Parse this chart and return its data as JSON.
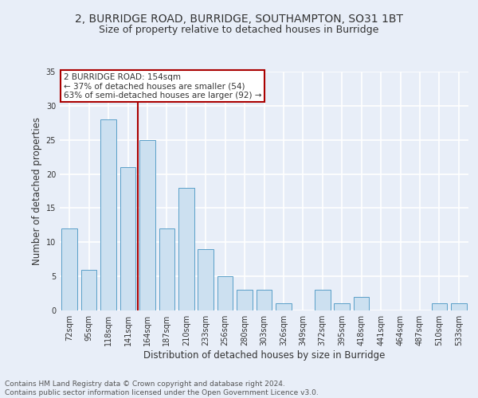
{
  "title1": "2, BURRIDGE ROAD, BURRIDGE, SOUTHAMPTON, SO31 1BT",
  "title2": "Size of property relative to detached houses in Burridge",
  "xlabel": "Distribution of detached houses by size in Burridge",
  "ylabel": "Number of detached properties",
  "categories": [
    "72sqm",
    "95sqm",
    "118sqm",
    "141sqm",
    "164sqm",
    "187sqm",
    "210sqm",
    "233sqm",
    "256sqm",
    "280sqm",
    "303sqm",
    "326sqm",
    "349sqm",
    "372sqm",
    "395sqm",
    "418sqm",
    "441sqm",
    "464sqm",
    "487sqm",
    "510sqm",
    "533sqm"
  ],
  "values": [
    12,
    6,
    28,
    21,
    25,
    12,
    18,
    9,
    5,
    3,
    3,
    1,
    0,
    3,
    1,
    2,
    0,
    0,
    0,
    1,
    1
  ],
  "bar_color": "#cce0f0",
  "bar_edge_color": "#5a9fc8",
  "vline_x_index": 3,
  "vline_color": "#aa0000",
  "annotation_text": "2 BURRIDGE ROAD: 154sqm\n← 37% of detached houses are smaller (54)\n63% of semi-detached houses are larger (92) →",
  "annotation_box_color": "#ffffff",
  "annotation_box_edge_color": "#aa0000",
  "footer_text": "Contains HM Land Registry data © Crown copyright and database right 2024.\nContains public sector information licensed under the Open Government Licence v3.0.",
  "ylim": [
    0,
    35
  ],
  "background_color": "#e8eef8",
  "grid_color": "#ffffff",
  "title1_fontsize": 10,
  "title2_fontsize": 9,
  "axis_fontsize": 8.5,
  "tick_fontsize": 7,
  "footer_fontsize": 6.5
}
